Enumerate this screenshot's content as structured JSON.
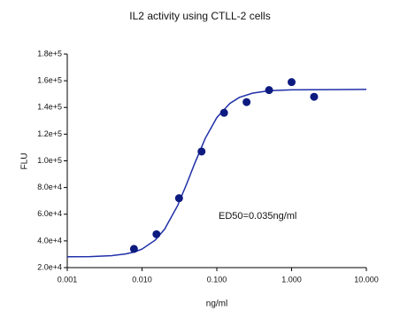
{
  "chart_data": {
    "type": "scatter",
    "title": "IL2 activity using CTLL-2 cells",
    "xlabel": "ng/ml",
    "ylabel": "FLU",
    "annotation": "ED50=0.035ng/ml",
    "xscale": "log",
    "grid": false,
    "point_color": "#0d1a80",
    "curve_color": "#1f2fa8",
    "x": [
      0.0078,
      0.0156,
      0.03125,
      0.0625,
      0.125,
      0.25,
      0.5,
      1.0,
      2.0
    ],
    "values": [
      34000,
      45000,
      72000,
      107000,
      136000,
      144000,
      153000,
      159000,
      148000
    ],
    "curve": {
      "x": [
        0.001,
        0.002,
        0.004,
        0.006,
        0.008,
        0.01,
        0.015,
        0.02,
        0.03,
        0.04,
        0.05,
        0.07,
        0.1,
        0.15,
        0.2,
        0.3,
        0.5,
        1,
        10
      ],
      "y": [
        28100,
        28200,
        29000,
        30200,
        31800,
        33900,
        40600,
        48700,
        66600,
        83400,
        97300,
        116800,
        132400,
        143100,
        147500,
        150700,
        152500,
        153200,
        153500
      ]
    },
    "xlim": [
      0.001,
      10
    ],
    "xticks": [
      0.001,
      {
        "value": 0.01,
        "label": "0.010"
      },
      {
        "value": 0.1,
        "label": "0.100"
      },
      {
        "value": 1,
        "label": "1.000"
      },
      {
        "value": 10,
        "label": "10.000"
      }
    ],
    "ylim": [
      20000,
      180000
    ],
    "yticks": [
      {
        "value": 20000,
        "label": "2.0e+4"
      },
      {
        "value": 40000,
        "label": "4.0e+4"
      },
      {
        "value": 60000,
        "label": "6.0e+4"
      },
      {
        "value": 80000,
        "label": "8.0e+4"
      },
      {
        "value": 100000,
        "label": "1.0e+5"
      },
      {
        "value": 120000,
        "label": "1.2e+5"
      },
      {
        "value": 140000,
        "label": "1.4e+5"
      },
      {
        "value": 160000,
        "label": "1.6e+5"
      },
      {
        "value": 180000,
        "label": "1.8e+5"
      }
    ]
  }
}
